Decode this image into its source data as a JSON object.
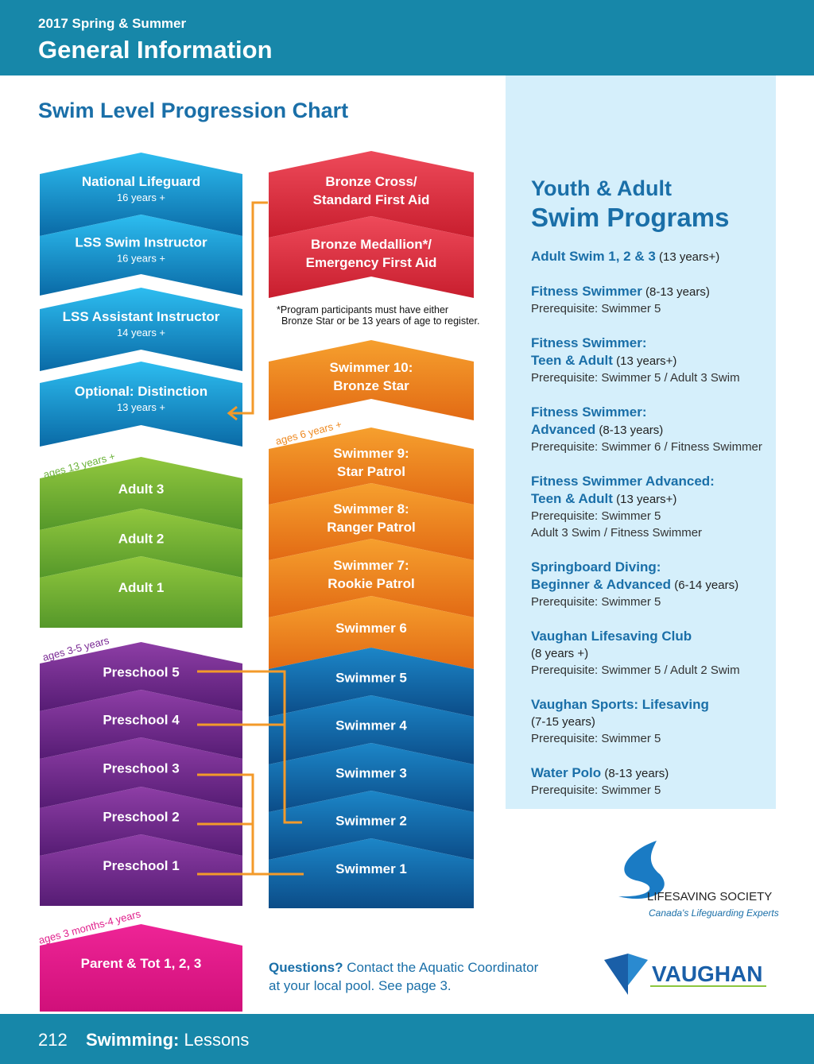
{
  "header": {
    "season": "2017 Spring & Summer",
    "title": "General Information"
  },
  "chart_title": "Swim Level Progression Chart",
  "left_levels": [
    {
      "lines": [
        "National Lifeguard"
      ],
      "sub": "16 years +"
    },
    {
      "lines": [
        "LSS Swim Instructor"
      ],
      "sub": "16 years +"
    },
    {
      "lines": [
        "LSS Assistant Instructor"
      ],
      "sub": "14 years +"
    },
    {
      "lines": [
        "Optional: Distinction"
      ],
      "sub": "13 years +"
    },
    {
      "lines": [
        "Adult 3"
      ]
    },
    {
      "lines": [
        "Adult 2"
      ]
    },
    {
      "lines": [
        "Adult 1"
      ]
    },
    {
      "lines": [
        "Preschool 5"
      ]
    },
    {
      "lines": [
        "Preschool 4"
      ]
    },
    {
      "lines": [
        "Preschool 3"
      ]
    },
    {
      "lines": [
        "Preschool 2"
      ]
    },
    {
      "lines": [
        "Preschool 1"
      ]
    },
    {
      "lines": [
        "Parent & Tot 1, 2, 3"
      ]
    }
  ],
  "right_levels": [
    {
      "lines": [
        "Bronze Cross/",
        "Standard First Aid"
      ]
    },
    {
      "lines": [
        "Bronze Medallion*/",
        "Emergency First Aid"
      ]
    },
    {
      "lines": [
        "Swimmer 10:",
        "Bronze Star"
      ]
    },
    {
      "lines": [
        "Swimmer 9:",
        "Star Patrol"
      ]
    },
    {
      "lines": [
        "Swimmer 8:",
        "Ranger Patrol"
      ]
    },
    {
      "lines": [
        "Swimmer 7:",
        "Rookie Patrol"
      ]
    },
    {
      "lines": [
        "Swimmer 6"
      ]
    },
    {
      "lines": [
        "Swimmer 5"
      ]
    },
    {
      "lines": [
        "Swimmer 4"
      ]
    },
    {
      "lines": [
        "Swimmer 3"
      ]
    },
    {
      "lines": [
        "Swimmer 2"
      ]
    },
    {
      "lines": [
        "Swimmer 1"
      ]
    }
  ],
  "age_labels": [
    "ages 13 years +",
    "ages 3-5 years",
    "ages 3 months-4 years",
    "ages 6 years +"
  ],
  "note": [
    "*Program participants must have either",
    "Bronze Star or be 13 years of age to register."
  ],
  "sidebar": {
    "title": [
      "Youth & Adult",
      "Swim Programs"
    ],
    "programs": [
      {
        "name": [
          "Adult Swim 1, 2 & 3"
        ],
        "ages": "(13 years+)",
        "details": []
      },
      {
        "name": [
          "Fitness Swimmer"
        ],
        "ages": "(8-13 years)",
        "details": [
          "Prerequisite: Swimmer 5"
        ]
      },
      {
        "name": [
          "Fitness Swimmer:",
          "Teen & Adult"
        ],
        "ages": "(13 years+)",
        "details": [
          "Prerequisite: Swimmer 5 / Adult 3 Swim"
        ]
      },
      {
        "name": [
          "Fitness Swimmer:",
          "Advanced"
        ],
        "ages": "(8-13 years)",
        "details": [
          "Prerequisite: Swimmer 6 / Fitness Swimmer"
        ]
      },
      {
        "name": [
          "Fitness Swimmer Advanced:",
          "Teen & Adult"
        ],
        "ages": "(13 years+)",
        "details": [
          "Prerequisite: Swimmer 5",
          "Adult 3 Swim / Fitness Swimmer"
        ]
      },
      {
        "name": [
          "Springboard Diving:",
          "Beginner & Advanced"
        ],
        "ages": "(6-14 years)",
        "details": [
          "Prerequisite: Swimmer 5"
        ]
      },
      {
        "name": [
          "Vaughan Lifesaving Club"
        ],
        "ages": "(8 years +)",
        "details": [
          "Prerequisite: Swimmer 5 / Adult 2 Swim"
        ]
      },
      {
        "name": [
          "Vaughan Sports: Lifesaving"
        ],
        "ages": "(7-15 years)",
        "details": [
          "Prerequisite: Swimmer 5"
        ]
      },
      {
        "name": [
          "Water Polo"
        ],
        "ages": "(8-13 years)",
        "details": [
          "Prerequisite: Swimmer 5"
        ]
      }
    ]
  },
  "questions": {
    "lead": "Questions?",
    "text": [
      "Contact the Aquatic Coordinator",
      "at your local pool. See page 3."
    ]
  },
  "logos": {
    "lifesaving": "LIFESAVING SOCIETY",
    "tagline": "Canada's Lifeguarding Experts",
    "vaughan": "VAUGHAN"
  },
  "footer": {
    "page": "212",
    "section": "Swimming:",
    "topic": "Lessons"
  }
}
